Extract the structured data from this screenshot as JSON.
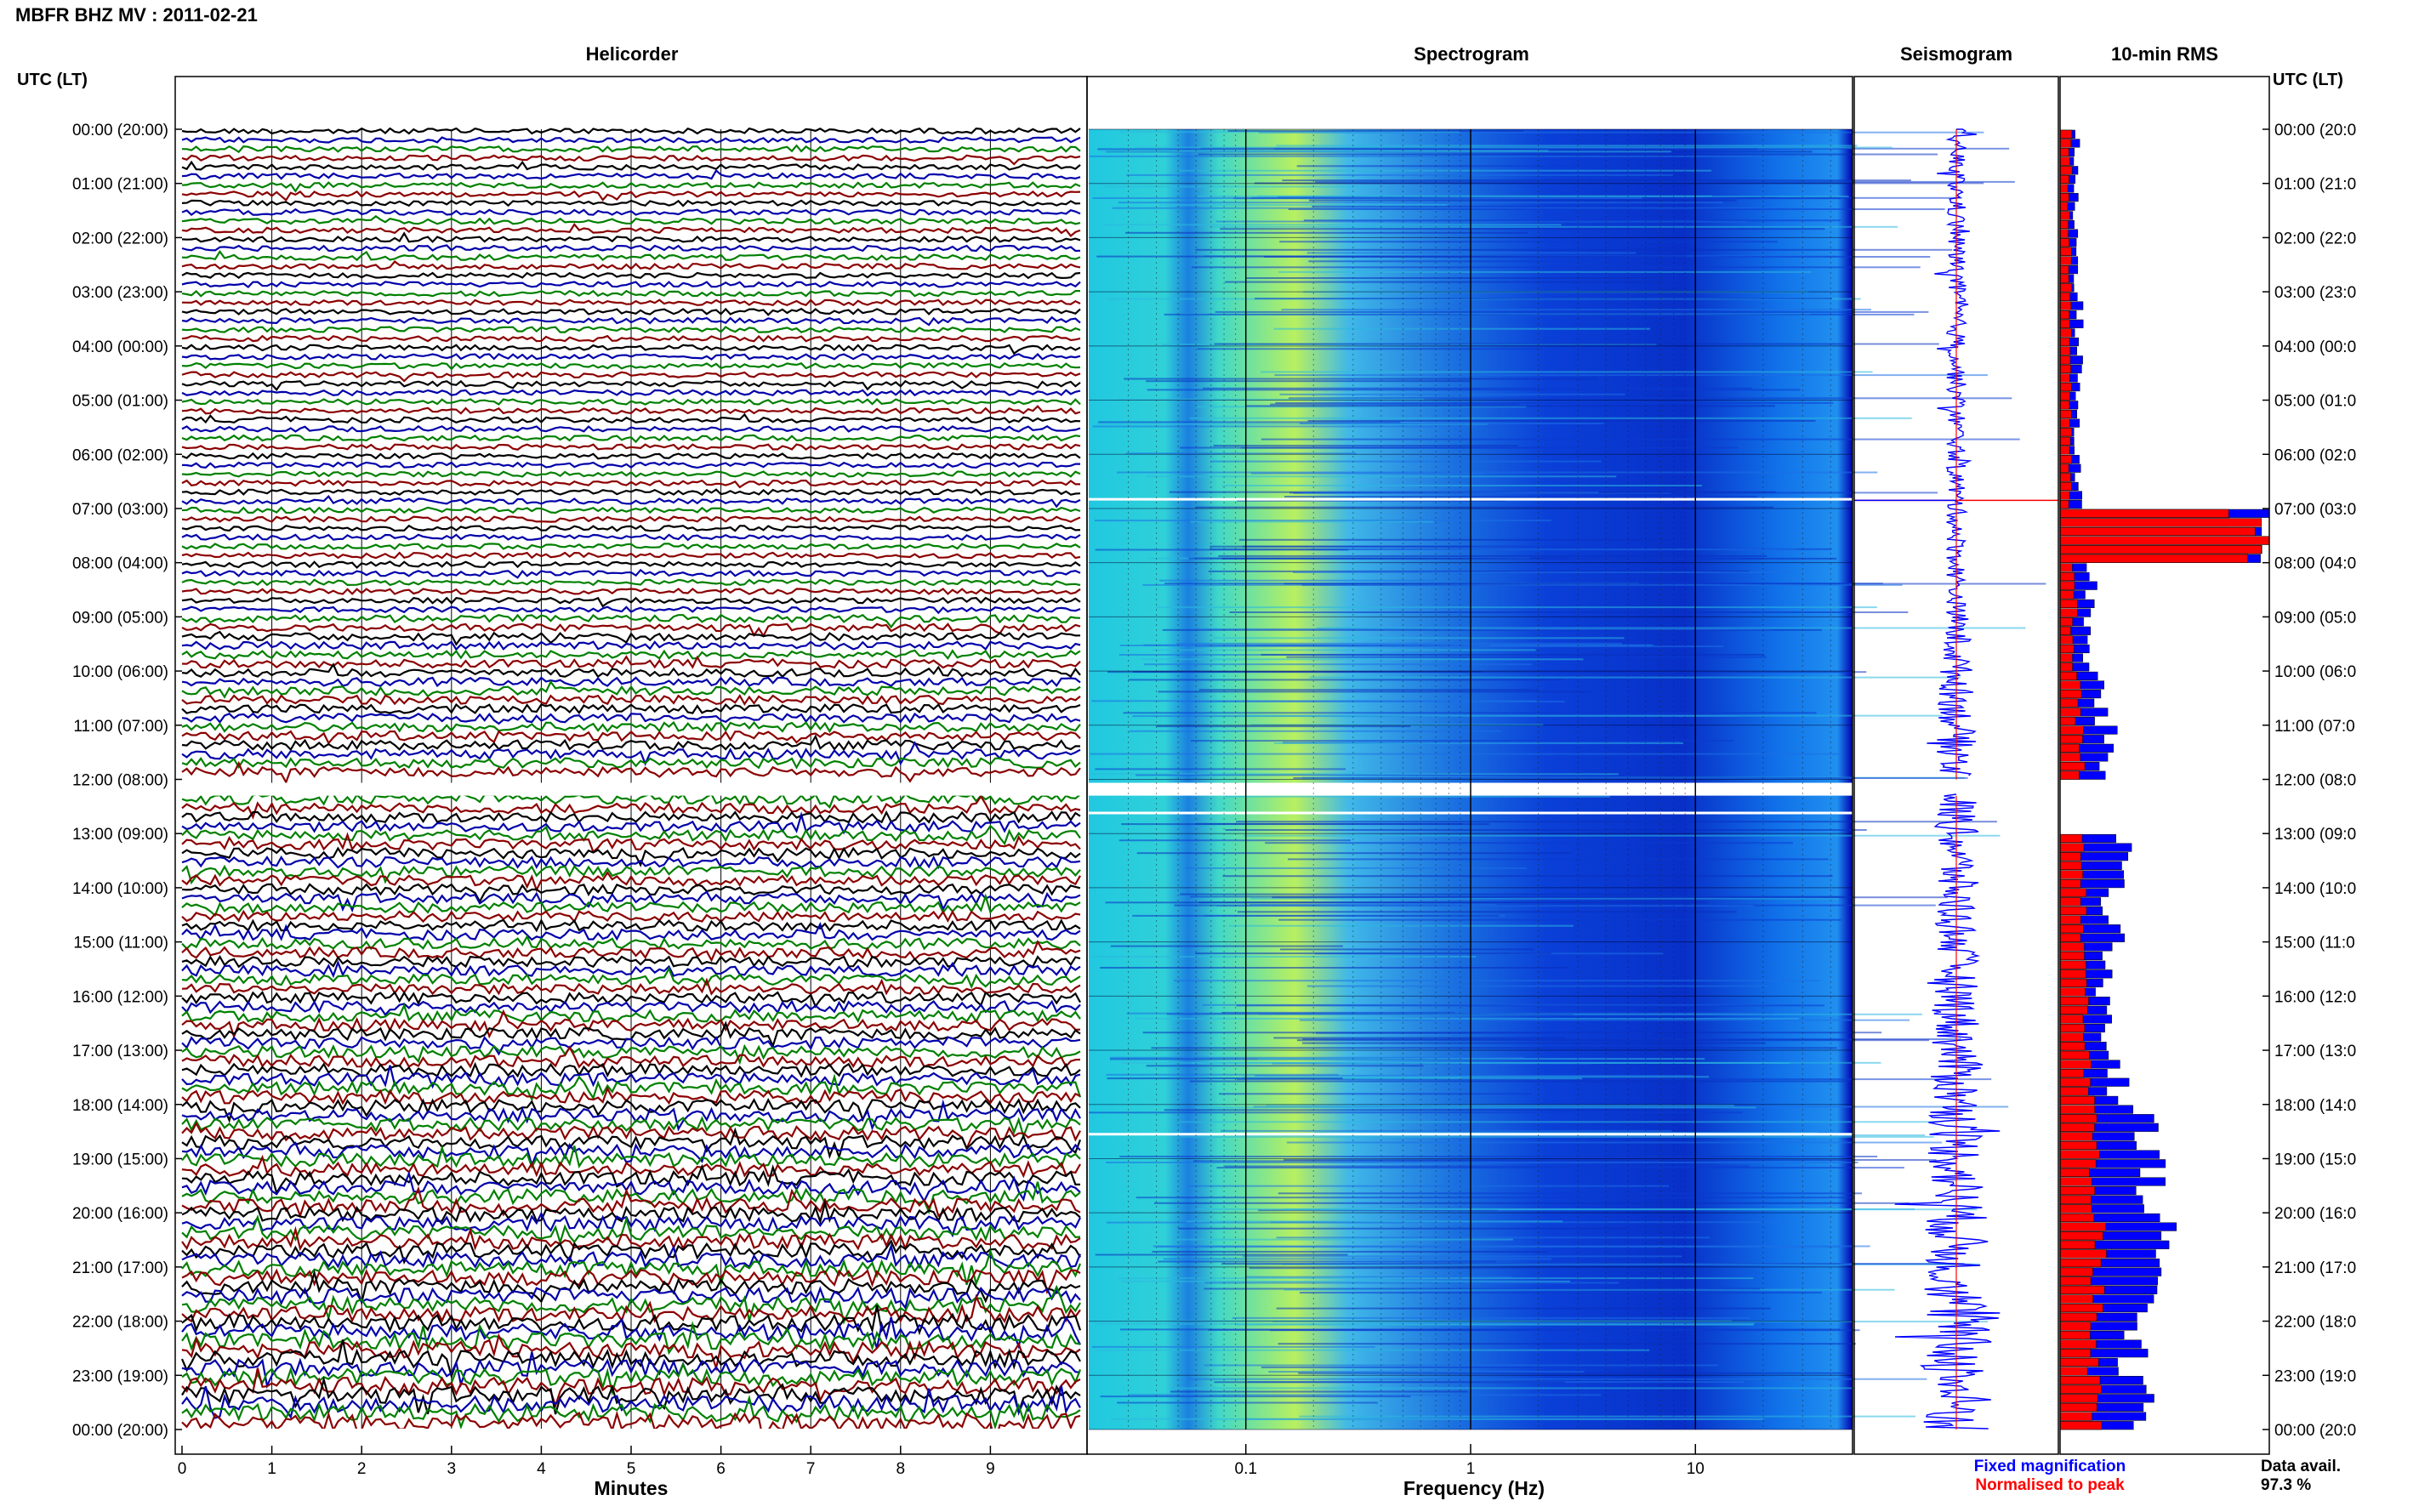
{
  "header": {
    "title": "MBFR BHZ MV : 2011-02-21"
  },
  "panels": {
    "left_time_label": "UTC (LT)",
    "right_time_label": "UTC (LT)",
    "helicorder": "Helicorder",
    "spectrogram": "Spectrogram",
    "seismogram": "Seismogram",
    "rms": "10-min RMS"
  },
  "time_labels": [
    "00:00 (20:00)",
    "01:00 (21:00)",
    "02:00 (22:00)",
    "03:00 (23:00)",
    "04:00 (00:00)",
    "05:00 (01:00)",
    "06:00 (02:00)",
    "07:00 (03:00)",
    "08:00 (04:00)",
    "09:00 (05:00)",
    "10:00 (06:00)",
    "11:00 (07:00)",
    "12:00 (08:00)",
    "13:00 (09:00)",
    "14:00 (10:00)",
    "15:00 (11:00)",
    "16:00 (12:00)",
    "17:00 (13:00)",
    "18:00 (14:00)",
    "19:00 (15:00)",
    "20:00 (16:00)",
    "21:00 (17:00)",
    "22:00 (18:00)",
    "23:00 (19:00)",
    "00:00 (20:00)"
  ],
  "right_time_labels": [
    "00:00 (20:0",
    "01:00 (21:0",
    "02:00 (22:0",
    "03:00 (23:0",
    "04:00 (00:0",
    "05:00 (01:0",
    "06:00 (02:0",
    "07:00 (03:0",
    "08:00 (04:0",
    "09:00 (05:0",
    "10:00 (06:0",
    "11:00 (07:0",
    "12:00 (08:0",
    "13:00 (09:0",
    "14:00 (10:0",
    "15:00 (11:0",
    "16:00 (12:0",
    "17:00 (13:0",
    "18:00 (14:0",
    "19:00 (15:0",
    "20:00 (16:0",
    "21:00 (17:0",
    "22:00 (18:0",
    "23:00 (19:0",
    "00:00 (20:0"
  ],
  "helicorder_axis": {
    "xlabel": "Minutes",
    "ticks": [
      "0",
      "1",
      "2",
      "3",
      "4",
      "5",
      "6",
      "7",
      "8",
      "9"
    ]
  },
  "spectrogram_axis": {
    "xlabel": "Frequency (Hz)",
    "ticks": [
      "0.1",
      "1",
      "10"
    ]
  },
  "legend": {
    "fixed": "Fixed magnification",
    "normalised": "Normalised to peak",
    "fixed_color": "#0000ff",
    "normalised_color": "#ff0000"
  },
  "data_avail": {
    "label": "Data avail.",
    "value": "97.3 %"
  },
  "colors": {
    "trace_cycle": [
      "#000000",
      "#0000aa",
      "#008000",
      "#8b0000"
    ],
    "spectro_low": "#00008b",
    "spectro_high": "#ffff00"
  },
  "chart_data": [
    {
      "type": "line",
      "title": "Helicorder",
      "xlabel": "Minutes",
      "xlim": [
        0,
        10
      ],
      "rows": 144,
      "row_minutes": 10,
      "gap_hours": [
        12.0,
        12.3
      ]
    },
    {
      "type": "heatmap",
      "title": "Spectrogram",
      "xlabel": "Frequency (Hz)",
      "xscale": "log",
      "xlim": [
        0.02,
        50
      ],
      "ylim_hours": [
        0,
        24
      ],
      "gap_hours": [
        12.0,
        12.3
      ]
    },
    {
      "type": "bar",
      "title": "10-min RMS",
      "series": [
        {
          "name": "Fixed magnification",
          "color": "#0000ff",
          "values_by_hour": [
            0.08,
            0.07,
            0.08,
            0.09,
            0.09,
            0.08,
            0.09,
            0.95,
            0.15,
            0.12,
            0.2,
            0.22,
            0.0,
            0.3,
            0.25,
            0.22,
            0.22,
            0.27,
            0.38,
            0.42,
            0.48,
            0.4,
            0.36,
            0.38
          ]
        },
        {
          "name": "Normalised to peak",
          "color": "#ff0000",
          "values_by_hour": [
            0.05,
            0.04,
            0.05,
            0.05,
            0.05,
            0.05,
            0.05,
            0.95,
            0.07,
            0.06,
            0.09,
            0.1,
            0.0,
            0.12,
            0.12,
            0.12,
            0.13,
            0.14,
            0.16,
            0.17,
            0.2,
            0.18,
            0.16,
            0.17
          ]
        }
      ]
    }
  ]
}
